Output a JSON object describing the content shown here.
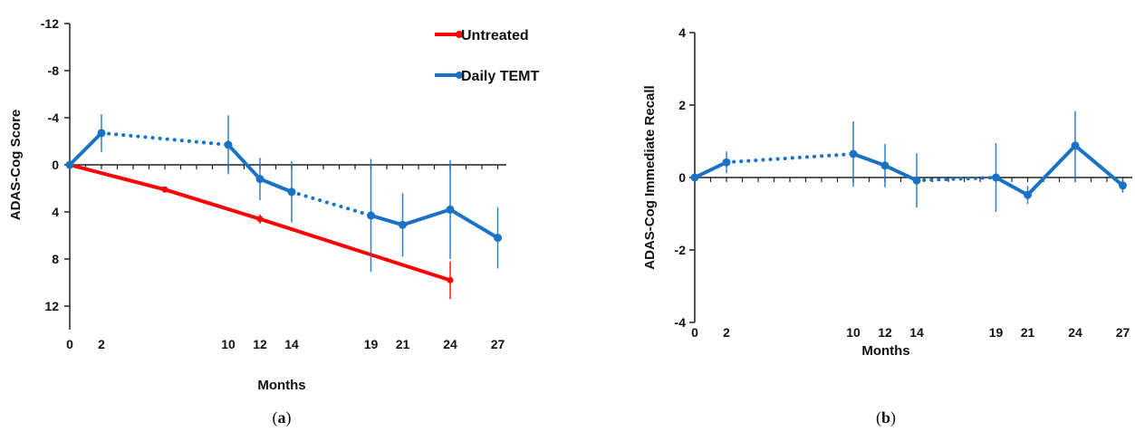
{
  "chart_data": [
    {
      "panel_label": "a",
      "type": "line",
      "xlabel": "Months",
      "ylabel": "ADAS-Cog Score",
      "y_inverted": true,
      "ylim": [
        -12,
        12
      ],
      "yticks": [
        -12,
        -8,
        -4,
        0,
        4,
        8,
        12
      ],
      "xlim": [
        0,
        28
      ],
      "xticks": [
        0,
        2,
        10,
        12,
        14,
        19,
        21,
        24,
        27
      ],
      "legend": "top-right",
      "colors": {
        "Untreated": "#ff0000",
        "Daily TEMT": "#1a72c4"
      },
      "series": [
        {
          "name": "Untreated",
          "points": [
            {
              "x": 0,
              "y": 0,
              "err": 0
            },
            {
              "x": 6,
              "y": 2.1,
              "err": 0.2
            },
            {
              "x": 12,
              "y": 4.6,
              "err": 0.4
            },
            {
              "x": 24,
              "y": 9.8,
              "err": 1.6
            }
          ]
        },
        {
          "name": "Daily TEMT",
          "dotted_segments": [
            [
              2,
              10
            ],
            [
              14,
              19
            ]
          ],
          "points": [
            {
              "x": 0,
              "y": 0,
              "err": 0
            },
            {
              "x": 2,
              "y": -2.7,
              "err": 1.6
            },
            {
              "x": 10,
              "y": -1.7,
              "err": 2.5
            },
            {
              "x": 12,
              "y": 1.2,
              "err": 1.8
            },
            {
              "x": 14,
              "y": 2.3,
              "err": 2.6
            },
            {
              "x": 19,
              "y": 4.3,
              "err": 4.8
            },
            {
              "x": 21,
              "y": 5.1,
              "err": 2.7
            },
            {
              "x": 24,
              "y": 3.8,
              "err": 4.2
            },
            {
              "x": 27,
              "y": 6.2,
              "err": 2.6
            }
          ]
        }
      ]
    },
    {
      "panel_label": "b",
      "type": "line",
      "xlabel": "Months",
      "ylabel": "ADAS-Cog Immediate Recall",
      "ylim": [
        -4,
        4
      ],
      "yticks": [
        -4,
        -2,
        0,
        2,
        4
      ],
      "xlim": [
        0,
        27
      ],
      "xticks": [
        0,
        2,
        10,
        12,
        14,
        19,
        21,
        24,
        27
      ],
      "series": [
        {
          "name": "",
          "color": "#1a72c4",
          "dotted_segments": [
            [
              2,
              10
            ],
            [
              14,
              19
            ]
          ],
          "points": [
            {
              "x": 0,
              "y": 0,
              "err": 0
            },
            {
              "x": 2,
              "y": 0.42,
              "err": 0.3
            },
            {
              "x": 10,
              "y": 0.65,
              "err": 0.9
            },
            {
              "x": 12,
              "y": 0.33,
              "err": 0.6
            },
            {
              "x": 14,
              "y": -0.08,
              "err": 0.75
            },
            {
              "x": 19,
              "y": 0.0,
              "err": 0.95
            },
            {
              "x": 21,
              "y": -0.48,
              "err": 0.25
            },
            {
              "x": 24,
              "y": 0.88,
              "err": 0.95
            },
            {
              "x": 27,
              "y": -0.22,
              "err": 0.2
            }
          ]
        }
      ]
    }
  ]
}
